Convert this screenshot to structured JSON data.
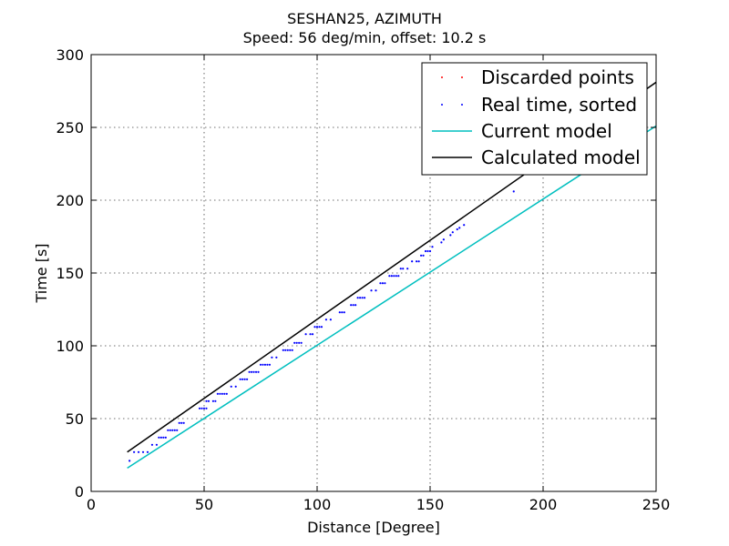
{
  "chart_data": {
    "type": "scatter",
    "title": "SESHAN25, AZIMUTH",
    "subtitle": "Speed: 56 deg/min, offset: 10.2 s",
    "xlabel": "Distance [Degree]",
    "ylabel": "Time [s]",
    "xlim": [
      0,
      250
    ],
    "ylim": [
      0,
      300
    ],
    "xticks": [
      0,
      50,
      100,
      150,
      200,
      250
    ],
    "yticks": [
      0,
      50,
      100,
      150,
      200,
      250,
      300
    ],
    "grid": true,
    "legend_position": "top-right",
    "series": [
      {
        "name": "Discarded points",
        "kind": "points",
        "color": "#ff0000",
        "points": []
      },
      {
        "name": "Real time, sorted",
        "kind": "points",
        "color": "#0000ff",
        "points": [
          [
            17,
            21
          ],
          [
            19,
            27
          ],
          [
            21,
            27
          ],
          [
            23,
            27
          ],
          [
            25,
            27
          ],
          [
            27,
            32
          ],
          [
            29,
            32
          ],
          [
            30,
            37
          ],
          [
            31,
            37
          ],
          [
            32,
            37
          ],
          [
            33,
            37
          ],
          [
            34,
            42
          ],
          [
            35,
            42
          ],
          [
            36,
            42
          ],
          [
            37,
            42
          ],
          [
            38,
            42
          ],
          [
            39,
            47
          ],
          [
            40,
            47
          ],
          [
            41,
            47
          ],
          [
            48,
            57
          ],
          [
            49,
            57
          ],
          [
            50,
            57
          ],
          [
            51,
            57
          ],
          [
            51,
            62
          ],
          [
            52,
            62
          ],
          [
            54,
            62
          ],
          [
            55,
            62
          ],
          [
            56,
            67
          ],
          [
            57,
            67
          ],
          [
            58,
            67
          ],
          [
            59,
            67
          ],
          [
            60,
            67
          ],
          [
            62,
            72
          ],
          [
            64,
            72
          ],
          [
            66,
            77
          ],
          [
            67,
            77
          ],
          [
            68,
            77
          ],
          [
            69,
            77
          ],
          [
            70,
            82
          ],
          [
            71,
            82
          ],
          [
            72,
            82
          ],
          [
            73,
            82
          ],
          [
            74,
            82
          ],
          [
            75,
            87
          ],
          [
            76,
            87
          ],
          [
            77,
            87
          ],
          [
            78,
            87
          ],
          [
            79,
            87
          ],
          [
            80,
            92
          ],
          [
            82,
            92
          ],
          [
            85,
            97
          ],
          [
            86,
            97
          ],
          [
            87,
            97
          ],
          [
            88,
            97
          ],
          [
            89,
            97
          ],
          [
            90,
            102
          ],
          [
            91,
            102
          ],
          [
            92,
            102
          ],
          [
            93,
            102
          ],
          [
            95,
            108
          ],
          [
            97,
            108
          ],
          [
            98,
            108
          ],
          [
            99,
            113
          ],
          [
            100,
            113
          ],
          [
            101,
            113
          ],
          [
            102,
            113
          ],
          [
            104,
            118
          ],
          [
            106,
            118
          ],
          [
            110,
            123
          ],
          [
            111,
            123
          ],
          [
            112,
            123
          ],
          [
            115,
            128
          ],
          [
            116,
            128
          ],
          [
            117,
            128
          ],
          [
            118,
            133
          ],
          [
            119,
            133
          ],
          [
            120,
            133
          ],
          [
            121,
            133
          ],
          [
            124,
            138
          ],
          [
            126,
            138
          ],
          [
            128,
            143
          ],
          [
            129,
            143
          ],
          [
            130,
            143
          ],
          [
            132,
            148
          ],
          [
            133,
            148
          ],
          [
            134,
            148
          ],
          [
            135,
            148
          ],
          [
            136,
            148
          ],
          [
            137,
            153
          ],
          [
            138,
            153
          ],
          [
            140,
            153
          ],
          [
            142,
            158
          ],
          [
            144,
            158
          ],
          [
            145,
            158
          ],
          [
            146,
            162
          ],
          [
            147,
            162
          ],
          [
            148,
            165
          ],
          [
            149,
            165
          ],
          [
            150,
            165
          ],
          [
            151,
            168
          ],
          [
            155,
            171
          ],
          [
            156,
            173
          ],
          [
            159,
            176
          ],
          [
            160,
            178
          ],
          [
            162,
            180
          ],
          [
            163,
            181
          ],
          [
            165,
            183
          ],
          [
            187,
            206
          ]
        ]
      },
      {
        "name": "Current model",
        "kind": "line",
        "color": "#00bfbf",
        "x": [
          16,
          250
        ],
        "y": [
          16,
          251
        ]
      },
      {
        "name": "Calculated model",
        "kind": "line",
        "color": "#000000",
        "x": [
          16,
          250
        ],
        "y": [
          27,
          281
        ]
      }
    ]
  }
}
